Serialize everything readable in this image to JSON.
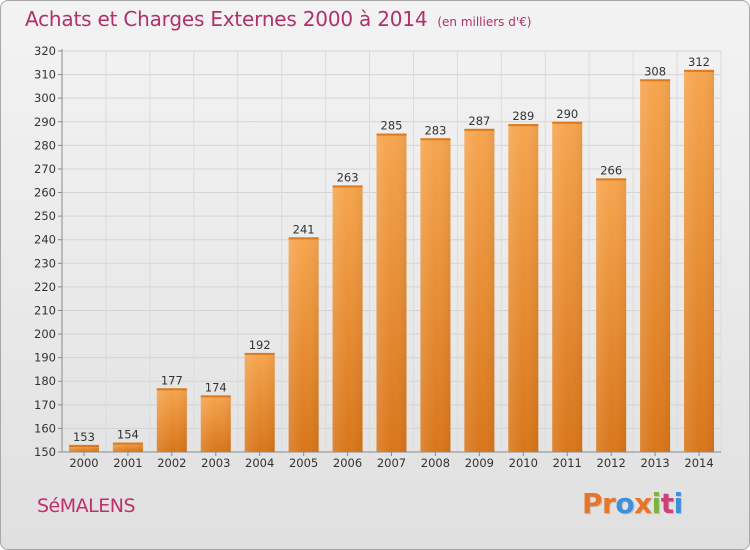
{
  "header": {
    "title": "Achats et Charges Externes 2000 à 2014",
    "unit": "(en milliers d'€)"
  },
  "footer": {
    "commune": "SéMALENS",
    "logo_text": "Proxiti"
  },
  "colors": {
    "title": "#b0306a",
    "bar_light": "#f6a24a",
    "bar_dark": "#e07d1c",
    "logo": [
      "#e8762a",
      "#e8762a",
      "#3f8fd8",
      "#e8762a",
      "#7fb23a",
      "#d13f78",
      "#3f8fd8"
    ]
  },
  "chart_data": {
    "type": "bar",
    "categories": [
      "2000",
      "2001",
      "2002",
      "2003",
      "2004",
      "2005",
      "2006",
      "2007",
      "2008",
      "2009",
      "2010",
      "2011",
      "2012",
      "2013",
      "2014"
    ],
    "values": [
      153,
      154,
      177,
      174,
      192,
      241,
      263,
      285,
      283,
      287,
      289,
      290,
      266,
      308,
      312
    ],
    "ylim": [
      150,
      320
    ],
    "yticks": [
      150,
      160,
      170,
      180,
      190,
      200,
      210,
      220,
      230,
      240,
      250,
      260,
      270,
      280,
      290,
      300,
      310,
      320
    ],
    "grid": true,
    "legend": "none"
  }
}
